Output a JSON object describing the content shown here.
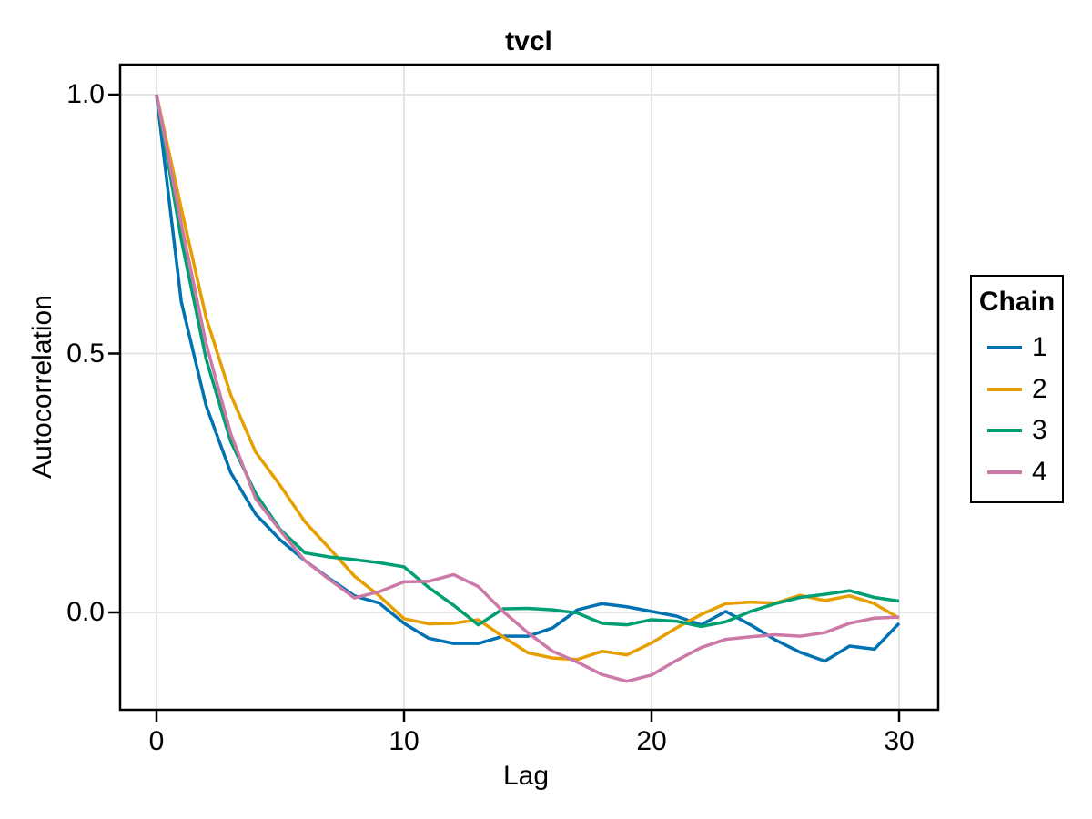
{
  "chart_data": {
    "type": "line",
    "title": "tvcl",
    "xlabel": "Lag",
    "ylabel": "Autocorrelation",
    "legend_title": "Chain",
    "legend_position": "right-outside",
    "grid": true,
    "frame": true,
    "grid_color": "#e4e4e4",
    "frame_color": "#000000",
    "x_ticks": {
      "values": [
        0,
        10,
        20,
        30
      ],
      "labels": [
        "0",
        "10",
        "20",
        "30"
      ]
    },
    "y_ticks": {
      "values": [
        1.0,
        0.5,
        0.0
      ],
      "labels": [
        "1.0",
        "0.5",
        "0.0"
      ]
    },
    "xlim": [
      -1.5,
      31.6
    ],
    "ylim": [
      -0.19,
      1.06
    ],
    "x": [
      0,
      1,
      2,
      3,
      4,
      5,
      6,
      7,
      8,
      9,
      10,
      11,
      12,
      13,
      14,
      15,
      16,
      17,
      18,
      19,
      20,
      21,
      22,
      23,
      24,
      25,
      26,
      27,
      28,
      29,
      30
    ],
    "series": [
      {
        "name": "1",
        "color": "#0072B2",
        "values": [
          1.0,
          0.6,
          0.4,
          0.27,
          0.19,
          0.14,
          0.1,
          0.065,
          0.032,
          0.018,
          -0.021,
          -0.05,
          -0.06,
          -0.06,
          -0.046,
          -0.046,
          -0.03,
          0.005,
          0.017,
          0.011,
          0.002,
          -0.007,
          -0.024,
          0.002,
          -0.024,
          -0.053,
          -0.077,
          -0.094,
          -0.065,
          -0.071,
          -0.021
        ]
      },
      {
        "name": "2",
        "color": "#E69F00",
        "values": [
          1.0,
          0.78,
          0.57,
          0.42,
          0.31,
          0.245,
          0.175,
          0.123,
          0.07,
          0.032,
          -0.012,
          -0.022,
          -0.021,
          -0.014,
          -0.047,
          -0.078,
          -0.088,
          -0.091,
          -0.075,
          -0.082,
          -0.059,
          -0.03,
          -0.004,
          0.017,
          0.02,
          0.018,
          0.033,
          0.023,
          0.032,
          0.017,
          -0.011
        ]
      },
      {
        "name": "3",
        "color": "#009E73",
        "values": [
          1.0,
          0.72,
          0.49,
          0.33,
          0.23,
          0.16,
          0.115,
          0.107,
          0.102,
          0.096,
          0.088,
          0.048,
          0.014,
          -0.024,
          0.007,
          0.008,
          0.005,
          -0.001,
          -0.021,
          -0.024,
          -0.014,
          -0.017,
          -0.027,
          -0.018,
          0.002,
          0.017,
          0.029,
          0.035,
          0.042,
          0.029,
          0.022
        ]
      },
      {
        "name": "4",
        "color": "#CC79A7",
        "values": [
          1.0,
          0.75,
          0.52,
          0.345,
          0.22,
          0.158,
          0.1,
          0.063,
          0.028,
          0.04,
          0.059,
          0.06,
          0.073,
          0.05,
          0.002,
          -0.039,
          -0.075,
          -0.096,
          -0.12,
          -0.133,
          -0.121,
          -0.093,
          -0.068,
          -0.052,
          -0.047,
          -0.043,
          -0.046,
          -0.039,
          -0.021,
          -0.011,
          -0.009
        ]
      }
    ]
  }
}
